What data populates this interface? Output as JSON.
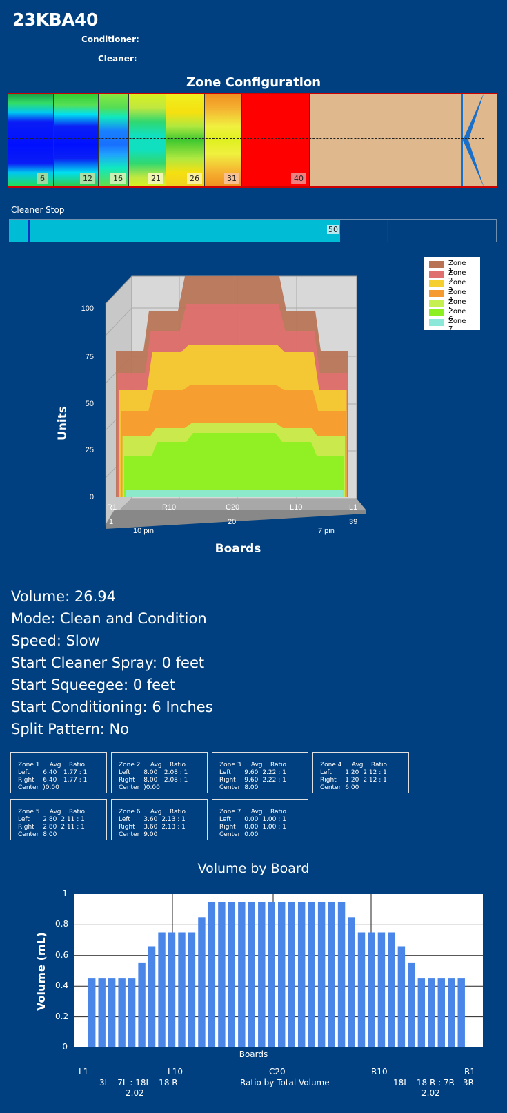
{
  "header": {
    "title": "23KBA40",
    "conditioner_label": "Conditioner:",
    "cleaner_label": "Cleaner:"
  },
  "zone_config": {
    "title": "Zone Configuration",
    "segments": [
      {
        "label": "6"
      },
      {
        "label": "12"
      },
      {
        "label": "16"
      },
      {
        "label": "21"
      },
      {
        "label": "26"
      },
      {
        "label": "31"
      },
      {
        "label": "40"
      }
    ]
  },
  "cleaner_stop": {
    "label": "Cleaner Stop",
    "value": "50",
    "fill_fraction": 0.68
  },
  "chart_3d": {
    "ylabel": "Units",
    "xlabel": "Boards",
    "y_ticks": [
      "100",
      "75",
      "50",
      "25",
      "0"
    ],
    "x_ticks": [
      "R1",
      "R10",
      "C20",
      "L10",
      "L1"
    ],
    "x_numbers": [
      "1",
      "20",
      "39"
    ],
    "pin_left": "10 pin",
    "pin_right": "7 pin",
    "legend": [
      {
        "name": "Zone 1",
        "color": "#b87355"
      },
      {
        "name": "Zone 2",
        "color": "#e07070"
      },
      {
        "name": "Zone 3",
        "color": "#f5cf30"
      },
      {
        "name": "Zone 4",
        "color": "#f59a30"
      },
      {
        "name": "Zone 5",
        "color": "#c6f050"
      },
      {
        "name": "Zone 6",
        "color": "#8cf020"
      },
      {
        "name": "Zone 7",
        "color": "#8ce8d8"
      }
    ]
  },
  "info": {
    "volume": "Volume: 26.94",
    "mode": "Mode: Clean and Condition",
    "speed": "Speed: Slow",
    "cleaner_spray": "Start Cleaner Spray: 0 feet",
    "squeegee": "Start Squeegee: 0 feet",
    "conditioning": "Start Conditioning: 6 Inches",
    "split": "Split Pattern: No"
  },
  "zone_boxes": [
    {
      "zone": "Zone 1",
      "avg_h": "Avg",
      "ratio_h": "Ratio",
      "left_l": "Left",
      "left_avg": "6.40",
      "left_ratio": "1.77 : 1",
      "right_l": "Right",
      "right_avg": "6.40",
      "right_ratio": "1.77 : 1",
      "center_l": "Center",
      "center": ")0.00"
    },
    {
      "zone": "Zone 2",
      "avg_h": "Avg",
      "ratio_h": "Ratio",
      "left_l": "Left",
      "left_avg": "8.00",
      "left_ratio": "2.08 : 1",
      "right_l": "Right",
      "right_avg": "8.00",
      "right_ratio": "2.08 : 1",
      "center_l": "Center",
      "center": ")0.00"
    },
    {
      "zone": "Zone 3",
      "avg_h": "Avg",
      "ratio_h": "Ratio",
      "left_l": "Left",
      "left_avg": "9.60",
      "left_ratio": "2.22 : 1",
      "right_l": "Right",
      "right_avg": "9.60",
      "right_ratio": "2.22 : 1",
      "center_l": "Center",
      "center": "8.00"
    },
    {
      "zone": "Zone 4",
      "avg_h": "Avg",
      "ratio_h": "Ratio",
      "left_l": "Left",
      "left_avg": "1.20",
      "left_ratio": "2.12 : 1",
      "right_l": "Right",
      "right_avg": "1.20",
      "right_ratio": "2.12 : 1",
      "center_l": "Center",
      "center": "6.00"
    },
    {
      "zone": "Zone 5",
      "avg_h": "Avg",
      "ratio_h": "Ratio",
      "left_l": "Left",
      "left_avg": "2.80",
      "left_ratio": "2.11 : 1",
      "right_l": "Right",
      "right_avg": "2.80",
      "right_ratio": "2.11 : 1",
      "center_l": "Center",
      "center": "8.00"
    },
    {
      "zone": "Zone 6",
      "avg_h": "Avg",
      "ratio_h": "Ratio",
      "left_l": "Left",
      "left_avg": "3.60",
      "left_ratio": "2.13 : 1",
      "right_l": "Right",
      "right_avg": "3.60",
      "right_ratio": "2.13 : 1",
      "center_l": "Center",
      "center": "9.00"
    },
    {
      "zone": "Zone 7",
      "avg_h": "Avg",
      "ratio_h": "Ratio",
      "left_l": "Left",
      "left_avg": "0.00",
      "left_ratio": "1.00 : 1",
      "right_l": "Right",
      "right_avg": "0.00",
      "right_ratio": "1.00 : 1",
      "center_l": "Center",
      "center": "0.00"
    }
  ],
  "chart_data": {
    "type": "bar",
    "title": "Volume by Board",
    "xlabel": "Boards",
    "ylabel": "Volume (mL)",
    "ylim": [
      0,
      1
    ],
    "y_ticks": [
      "1",
      "0.8",
      "0.6",
      "0.4",
      "0.2",
      "0"
    ],
    "grid": true,
    "bar_color": "#4a86e8",
    "values": [
      0.45,
      0.45,
      0.45,
      0.45,
      0.45,
      0.55,
      0.66,
      0.75,
      0.75,
      0.75,
      0.75,
      0.85,
      0.95,
      0.95,
      0.95,
      0.95,
      0.95,
      0.95,
      0.95,
      0.95,
      0.95,
      0.95,
      0.95,
      0.95,
      0.95,
      0.95,
      0.85,
      0.75,
      0.75,
      0.75,
      0.75,
      0.66,
      0.55,
      0.45,
      0.45,
      0.45,
      0.45,
      0.45
    ],
    "bottom_labels": [
      "L1",
      "L10",
      "C20",
      "R10",
      "R1"
    ],
    "left_ratio_label": "3L - 7L : 18L - 18 R",
    "left_ratio_value": "2.02",
    "center_caption": "Ratio by Total Volume",
    "right_ratio_label": "18L - 18 R : 7R - 3R",
    "right_ratio_value": "2.02"
  }
}
